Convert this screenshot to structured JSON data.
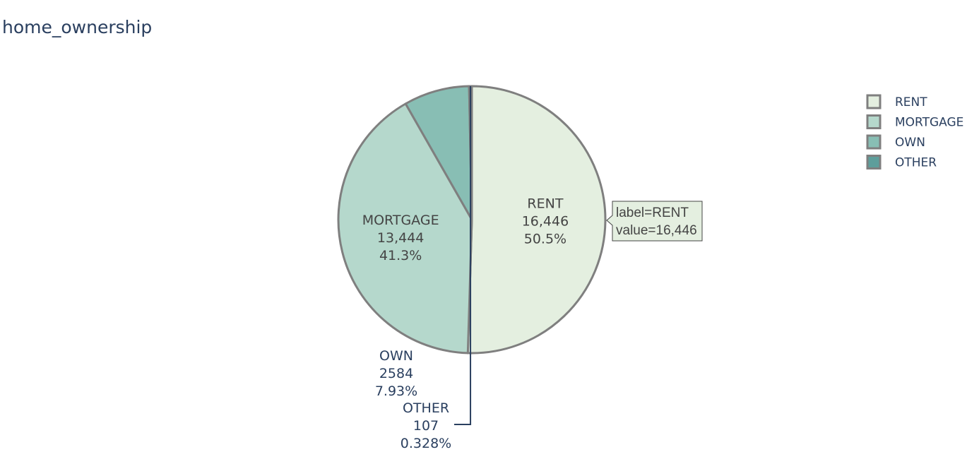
{
  "title": "home_ownership",
  "colors": {
    "slice_stroke": "#7f7f7f",
    "inside_text": "#444444",
    "outside_text": "#2a3f5f",
    "leader_line": "#2a3f5f",
    "title_text": "#2a3f5f"
  },
  "hover": {
    "line1": "label=RENT",
    "line2": "value=16,446"
  },
  "legend": {
    "items": [
      "RENT",
      "MORTGAGE",
      "OWN",
      "OTHER"
    ]
  },
  "chart_data": {
    "type": "pie",
    "title": "home_ownership",
    "labels": [
      "RENT",
      "MORTGAGE",
      "OWN",
      "OTHER"
    ],
    "values": [
      16446,
      13444,
      2584,
      107
    ],
    "value_labels": [
      "16,446",
      "13,444",
      "2584",
      "107"
    ],
    "percent_labels": [
      "50.5%",
      "41.3%",
      "7.93%",
      "0.328%"
    ],
    "colors": [
      "#e4efe0",
      "#b5d8cc",
      "#88beb4",
      "#5e9e9b"
    ],
    "sort": "descending",
    "direction": "clockwise",
    "legend_position": "top-right"
  }
}
